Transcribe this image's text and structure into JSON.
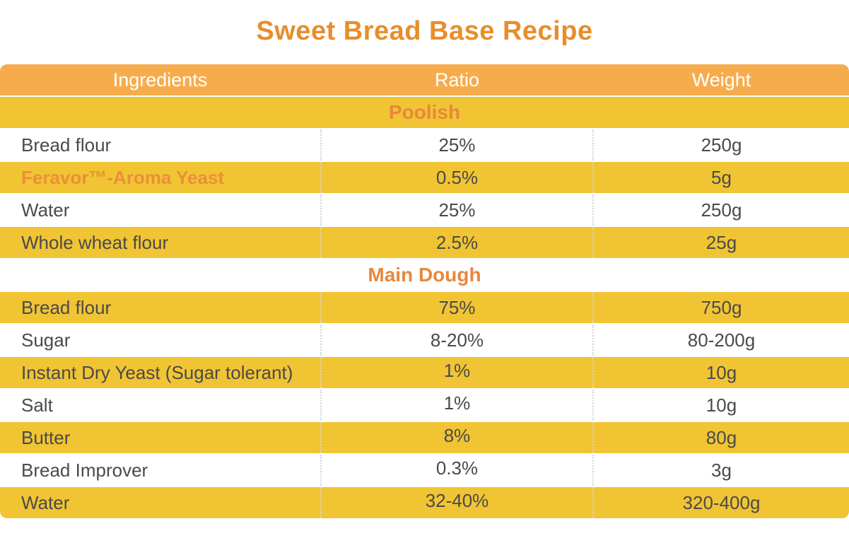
{
  "title": "Sweet Bread Base Recipe",
  "colors": {
    "title_orange": "#E78E2C",
    "header_background": "#F6AC4D",
    "header_text": "#FFFFFF",
    "row_yellow": "#F1C433",
    "row_white": "#FFFFFF",
    "section_text_orange": "#E8873C",
    "highlight_text_orange": "#EA9038",
    "body_text": "#4A4A4A",
    "column_divider": "#D4D4D4"
  },
  "table": {
    "columns": [
      "Ingredients",
      "Ratio",
      "Weight"
    ],
    "sections": [
      {
        "name": "Poolish",
        "rows": [
          {
            "ingredient": "Bread flour",
            "ratio": "25%",
            "weight": "250g"
          },
          {
            "ingredient": "Feravor™-Aroma Yeast",
            "ratio": "0.5%",
            "weight": "5g",
            "highlight": true
          },
          {
            "ingredient": "Water",
            "ratio": "25%",
            "weight": "250g"
          },
          {
            "ingredient": "Whole wheat flour",
            "ratio": "2.5%",
            "weight": "25g"
          }
        ]
      },
      {
        "name": "Main Dough",
        "rows": [
          {
            "ingredient": "Bread flour",
            "ratio": "75%",
            "weight": "750g"
          },
          {
            "ingredient": "Sugar",
            "ratio": "8-20%",
            "weight": "80-200g"
          },
          {
            "ingredient": "Instant Dry Yeast (Sugar tolerant)",
            "ratio": "1%",
            "weight": "10g",
            "ratio_raised": true
          },
          {
            "ingredient": "Salt",
            "ratio": "1%",
            "weight": "10g",
            "ratio_raised": true
          },
          {
            "ingredient": "Butter",
            "ratio": "8%",
            "weight": "80g",
            "ratio_raised": true
          },
          {
            "ingredient": "Bread Improver",
            "ratio": "0.3%",
            "weight": "3g",
            "ratio_raised": true
          },
          {
            "ingredient": "Water",
            "ratio": "32-40%",
            "weight": "320-400g",
            "ratio_raised": true
          }
        ]
      }
    ]
  }
}
